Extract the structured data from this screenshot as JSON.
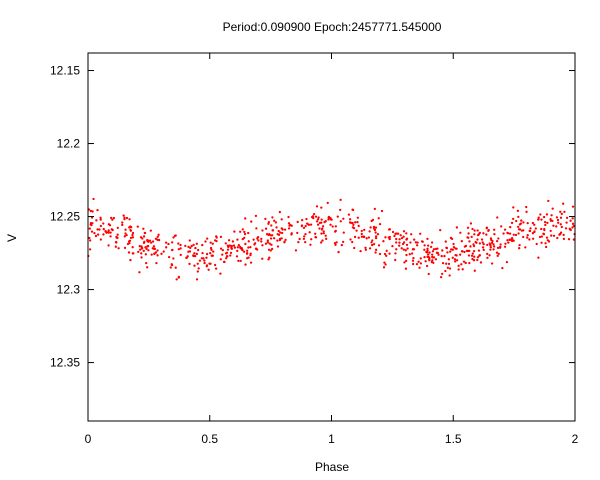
{
  "chart_data": {
    "type": "scatter",
    "title": "Period:0.090900 Epoch:2457771.545000",
    "xlabel": "Phase",
    "ylabel": "V",
    "xlim": [
      0,
      2
    ],
    "ylim": [
      12.39,
      12.138
    ],
    "y_inverted": true,
    "x_ticks": [
      0,
      0.5,
      1,
      1.5,
      2
    ],
    "x_tick_labels": [
      "0",
      "0.5",
      "1",
      "1.5",
      "2"
    ],
    "y_ticks": [
      12.15,
      12.2,
      12.25,
      12.3,
      12.35
    ],
    "y_tick_labels": [
      "12.15",
      "12.2",
      "12.25",
      "12.3",
      "12.35"
    ],
    "grid": false,
    "marker_color": "#ff0000",
    "series": [
      {
        "phase_profile": {
          "x": [
            0.0,
            0.05,
            0.1,
            0.15,
            0.2,
            0.25,
            0.3,
            0.35,
            0.4,
            0.45,
            0.5,
            0.55,
            0.6,
            0.65,
            0.7,
            0.75,
            0.8,
            0.85,
            0.9,
            0.95,
            1.0
          ],
          "y": [
            12.258,
            12.256,
            12.259,
            12.263,
            12.266,
            12.269,
            12.272,
            12.274,
            12.276,
            12.276,
            12.275,
            12.273,
            12.27,
            12.268,
            12.266,
            12.262,
            12.259,
            12.258,
            12.257,
            12.257,
            12.258
          ]
        },
        "scatter_width": 0.007,
        "points_per_unit_phase": 420
      }
    ]
  }
}
